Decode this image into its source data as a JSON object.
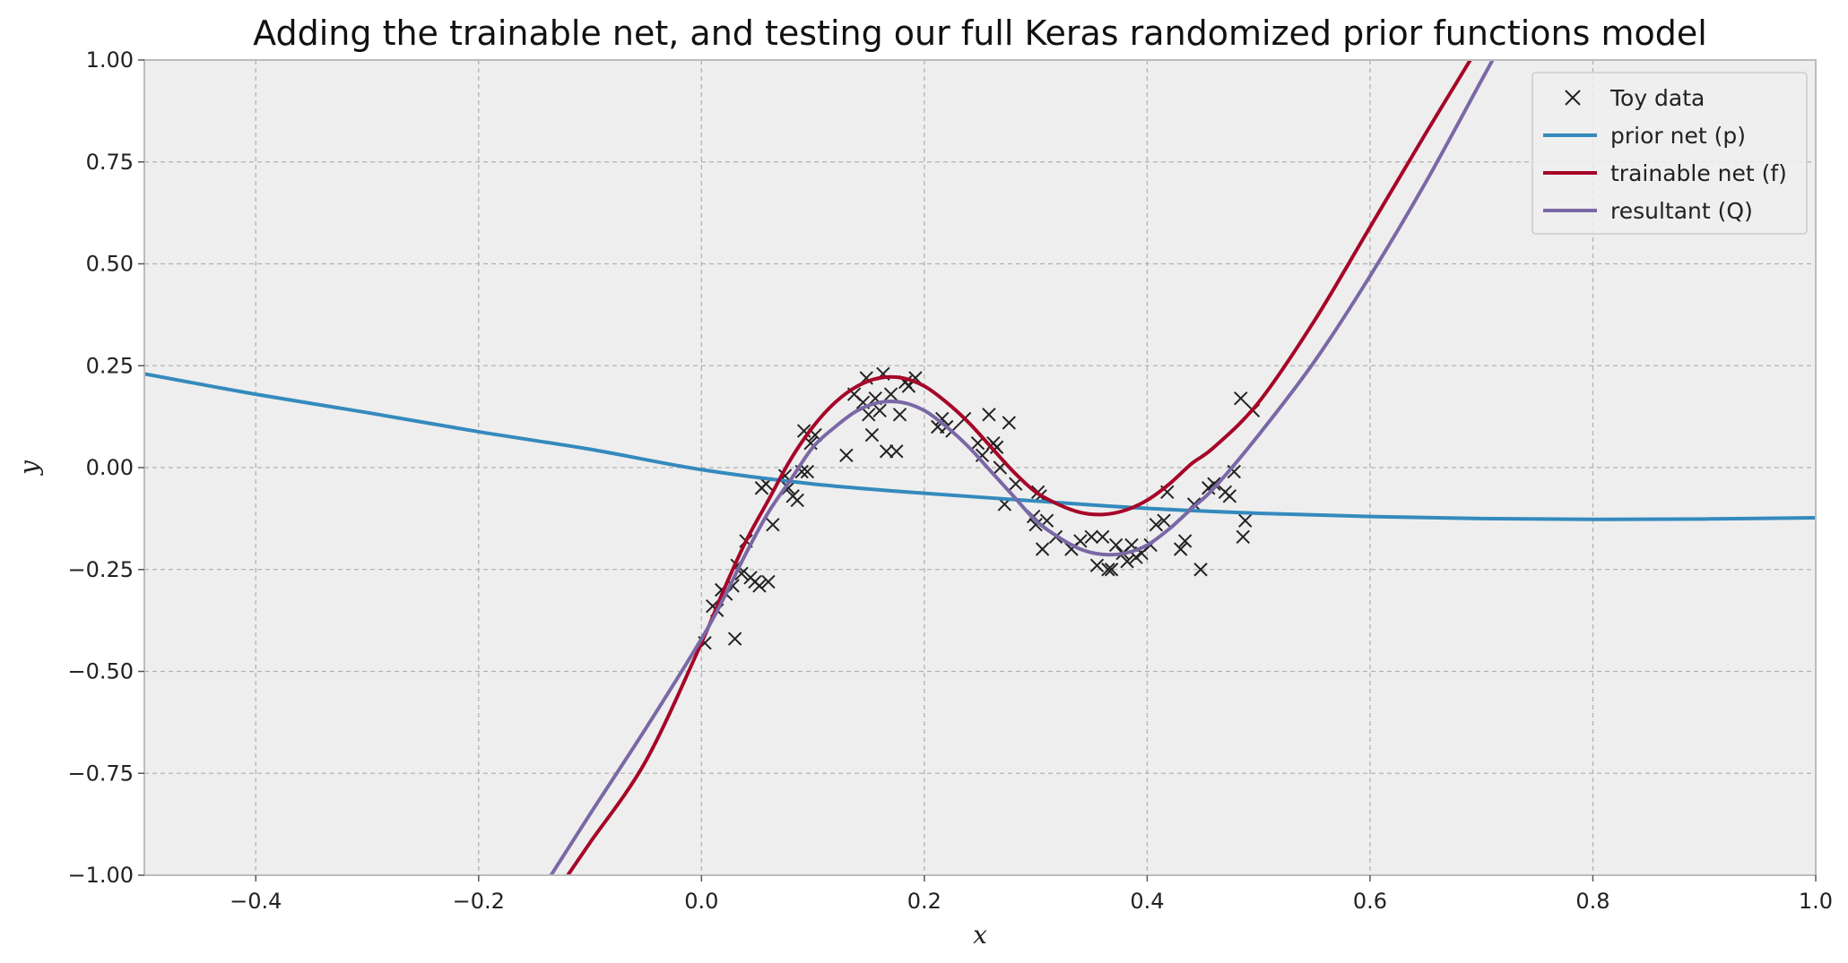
{
  "chart_data": {
    "type": "line",
    "title": "Adding the trainable net, and testing our full Keras randomized prior functions model",
    "xlabel": "x",
    "ylabel": "y",
    "xlim": [
      -0.5,
      1.0
    ],
    "ylim": [
      -1.0,
      1.0
    ],
    "grid": true,
    "legend_position": "top-right",
    "x_ticks": [
      -0.4,
      -0.2,
      0.0,
      0.2,
      0.4,
      0.6,
      0.8,
      1.0
    ],
    "x_tick_labels": [
      "−0.4",
      "−0.2",
      "0.0",
      "0.2",
      "0.4",
      "0.6",
      "0.8",
      "1.0"
    ],
    "y_ticks": [
      -1.0,
      -0.75,
      -0.5,
      -0.25,
      0.0,
      0.25,
      0.5,
      0.75,
      1.0
    ],
    "y_tick_labels": [
      "−1.00",
      "−0.75",
      "−0.50",
      "−0.25",
      "0.00",
      "0.25",
      "0.50",
      "0.75",
      "1.00"
    ],
    "series": [
      {
        "name": "Toy data",
        "kind": "scatter",
        "marker": "x",
        "color": "#222222",
        "points": [
          [
            0.003,
            -0.43
          ],
          [
            0.01,
            -0.34
          ],
          [
            0.014,
            -0.35
          ],
          [
            0.018,
            -0.3
          ],
          [
            0.022,
            -0.31
          ],
          [
            0.028,
            -0.29
          ],
          [
            0.03,
            -0.42
          ],
          [
            0.032,
            -0.24
          ],
          [
            0.036,
            -0.26
          ],
          [
            0.04,
            -0.18
          ],
          [
            0.044,
            -0.27
          ],
          [
            0.048,
            -0.28
          ],
          [
            0.052,
            -0.29
          ],
          [
            0.054,
            -0.05
          ],
          [
            0.058,
            -0.04
          ],
          [
            0.06,
            -0.28
          ],
          [
            0.064,
            -0.14
          ],
          [
            0.075,
            -0.02
          ],
          [
            0.078,
            -0.05
          ],
          [
            0.082,
            -0.07
          ],
          [
            0.086,
            -0.08
          ],
          [
            0.09,
            -0.01
          ],
          [
            0.092,
            0.09
          ],
          [
            0.095,
            -0.01
          ],
          [
            0.098,
            0.06
          ],
          [
            0.102,
            0.08
          ],
          [
            0.13,
            0.03
          ],
          [
            0.137,
            0.18
          ],
          [
            0.145,
            0.16
          ],
          [
            0.148,
            0.22
          ],
          [
            0.15,
            0.13
          ],
          [
            0.153,
            0.08
          ],
          [
            0.156,
            0.17
          ],
          [
            0.16,
            0.14
          ],
          [
            0.163,
            0.23
          ],
          [
            0.166,
            0.04
          ],
          [
            0.17,
            0.18
          ],
          [
            0.175,
            0.04
          ],
          [
            0.178,
            0.13
          ],
          [
            0.183,
            0.21
          ],
          [
            0.186,
            0.2
          ],
          [
            0.192,
            0.22
          ],
          [
            0.212,
            0.1
          ],
          [
            0.216,
            0.12
          ],
          [
            0.22,
            0.1
          ],
          [
            0.225,
            0.09
          ],
          [
            0.236,
            0.12
          ],
          [
            0.248,
            0.06
          ],
          [
            0.252,
            0.03
          ],
          [
            0.258,
            0.13
          ],
          [
            0.262,
            0.06
          ],
          [
            0.265,
            0.05
          ],
          [
            0.268,
            0.0
          ],
          [
            0.272,
            -0.09
          ],
          [
            0.276,
            0.11
          ],
          [
            0.282,
            -0.04
          ],
          [
            0.298,
            -0.12
          ],
          [
            0.3,
            -0.14
          ],
          [
            0.302,
            -0.06
          ],
          [
            0.304,
            -0.07
          ],
          [
            0.306,
            -0.2
          ],
          [
            0.31,
            -0.13
          ],
          [
            0.318,
            -0.17
          ],
          [
            0.332,
            -0.2
          ],
          [
            0.34,
            -0.18
          ],
          [
            0.35,
            -0.17
          ],
          [
            0.355,
            -0.24
          ],
          [
            0.36,
            -0.17
          ],
          [
            0.365,
            -0.25
          ],
          [
            0.368,
            -0.25
          ],
          [
            0.372,
            -0.19
          ],
          [
            0.378,
            -0.21
          ],
          [
            0.382,
            -0.23
          ],
          [
            0.386,
            -0.19
          ],
          [
            0.39,
            -0.22
          ],
          [
            0.395,
            -0.21
          ],
          [
            0.403,
            -0.19
          ],
          [
            0.408,
            -0.14
          ],
          [
            0.415,
            -0.13
          ],
          [
            0.418,
            -0.06
          ],
          [
            0.43,
            -0.2
          ],
          [
            0.434,
            -0.18
          ],
          [
            0.442,
            -0.09
          ],
          [
            0.448,
            -0.25
          ],
          [
            0.455,
            -0.05
          ],
          [
            0.46,
            -0.04
          ],
          [
            0.47,
            -0.06
          ],
          [
            0.474,
            -0.07
          ],
          [
            0.478,
            -0.01
          ],
          [
            0.484,
            0.17
          ],
          [
            0.486,
            -0.17
          ],
          [
            0.488,
            -0.13
          ],
          [
            0.495,
            0.14
          ]
        ]
      },
      {
        "name": "prior net (p)",
        "kind": "line",
        "color": "#348ABD",
        "points": [
          [
            -0.5,
            0.23
          ],
          [
            -0.4,
            0.18
          ],
          [
            -0.3,
            0.135
          ],
          [
            -0.2,
            0.088
          ],
          [
            -0.1,
            0.045
          ],
          [
            0.0,
            -0.005
          ],
          [
            0.1,
            -0.04
          ],
          [
            0.2,
            -0.063
          ],
          [
            0.3,
            -0.082
          ],
          [
            0.4,
            -0.1
          ],
          [
            0.5,
            -0.112
          ],
          [
            0.6,
            -0.12
          ],
          [
            0.7,
            -0.125
          ],
          [
            0.8,
            -0.127
          ],
          [
            0.9,
            -0.126
          ],
          [
            1.0,
            -0.123
          ]
        ]
      },
      {
        "name": "trainable net (f)",
        "kind": "line",
        "color": "#A60628",
        "points": [
          [
            -0.12,
            -1.0
          ],
          [
            -0.1,
            -0.92
          ],
          [
            -0.05,
            -0.72
          ],
          [
            0.0,
            -0.43
          ],
          [
            0.02,
            -0.3
          ],
          [
            0.04,
            -0.18
          ],
          [
            0.06,
            -0.08
          ],
          [
            0.08,
            0.02
          ],
          [
            0.1,
            0.1
          ],
          [
            0.12,
            0.16
          ],
          [
            0.14,
            0.2
          ],
          [
            0.16,
            0.22
          ],
          [
            0.18,
            0.22
          ],
          [
            0.2,
            0.2
          ],
          [
            0.22,
            0.16
          ],
          [
            0.24,
            0.11
          ],
          [
            0.26,
            0.05
          ],
          [
            0.28,
            -0.01
          ],
          [
            0.3,
            -0.06
          ],
          [
            0.32,
            -0.09
          ],
          [
            0.34,
            -0.11
          ],
          [
            0.36,
            -0.115
          ],
          [
            0.38,
            -0.105
          ],
          [
            0.4,
            -0.08
          ],
          [
            0.42,
            -0.04
          ],
          [
            0.44,
            0.01
          ],
          [
            0.46,
            0.05
          ],
          [
            0.5,
            0.16
          ],
          [
            0.55,
            0.36
          ],
          [
            0.6,
            0.59
          ],
          [
            0.65,
            0.82
          ],
          [
            0.69,
            1.0
          ]
        ]
      },
      {
        "name": "resultant (Q)",
        "kind": "line",
        "color": "#7A68A6",
        "points": [
          [
            -0.135,
            -1.0
          ],
          [
            -0.1,
            -0.85
          ],
          [
            -0.05,
            -0.64
          ],
          [
            0.0,
            -0.42
          ],
          [
            0.02,
            -0.32
          ],
          [
            0.04,
            -0.21
          ],
          [
            0.06,
            -0.11
          ],
          [
            0.08,
            -0.03
          ],
          [
            0.1,
            0.05
          ],
          [
            0.12,
            0.1
          ],
          [
            0.14,
            0.14
          ],
          [
            0.16,
            0.16
          ],
          [
            0.18,
            0.16
          ],
          [
            0.2,
            0.14
          ],
          [
            0.22,
            0.1
          ],
          [
            0.24,
            0.05
          ],
          [
            0.26,
            -0.01
          ],
          [
            0.28,
            -0.07
          ],
          [
            0.3,
            -0.13
          ],
          [
            0.32,
            -0.17
          ],
          [
            0.34,
            -0.2
          ],
          [
            0.36,
            -0.213
          ],
          [
            0.38,
            -0.21
          ],
          [
            0.4,
            -0.19
          ],
          [
            0.42,
            -0.15
          ],
          [
            0.44,
            -0.1
          ],
          [
            0.46,
            -0.05
          ],
          [
            0.5,
            0.08
          ],
          [
            0.55,
            0.26
          ],
          [
            0.6,
            0.47
          ],
          [
            0.65,
            0.7
          ],
          [
            0.7,
            0.95
          ],
          [
            0.71,
            1.0
          ]
        ]
      }
    ]
  }
}
